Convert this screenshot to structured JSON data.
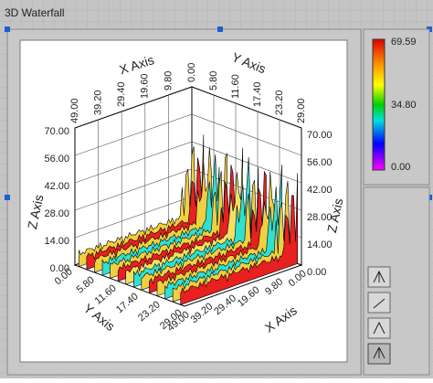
{
  "window": {
    "title": "3D Waterfall"
  },
  "plot": {
    "x_axis_label": "X Axis",
    "y_axis_label": "Y Axis",
    "z_axis_label": "Z Axis",
    "x_ticks_top": [
      "49.00",
      "39.20",
      "29.40",
      "19.60",
      "9.80",
      "0.00"
    ],
    "y_ticks_top": [
      "5.80",
      "11.60",
      "17.40",
      "23.20",
      "29.00"
    ],
    "z_ticks_left": [
      "70.00",
      "56.00",
      "42.00",
      "28.00",
      "14.00",
      "0.00"
    ],
    "z_ticks_right": [
      "70.00",
      "56.00",
      "42.00",
      "28.00",
      "14.00",
      "0.00"
    ],
    "y_ticks_bottom": [
      "0.00",
      "5.80",
      "11.60",
      "17.40",
      "23.20",
      "29.00"
    ],
    "x_ticks_bottom": [
      "0.00",
      "9.80",
      "19.60",
      "29.40",
      "39.20",
      "49.00"
    ]
  },
  "color_ramp": {
    "labels": [
      "69.59",
      "34.80",
      "0.00"
    ]
  }
}
